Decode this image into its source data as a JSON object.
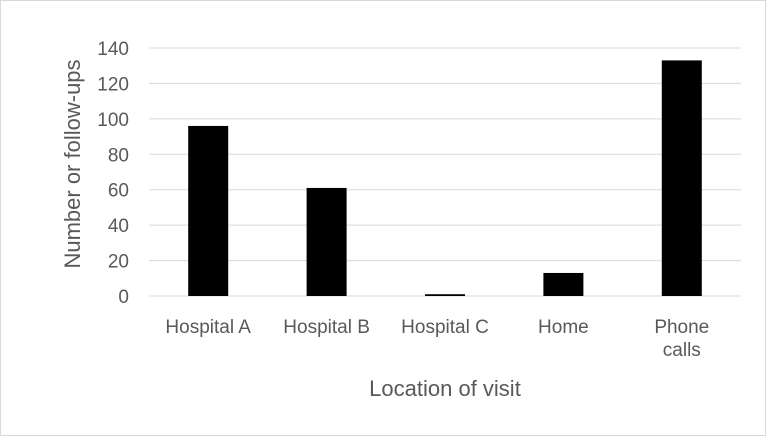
{
  "chart_data": {
    "type": "bar",
    "title": "",
    "xlabel": "Location of visit",
    "ylabel": "Number or follow-ups",
    "categories": [
      {
        "lines": [
          "Hospital A"
        ]
      },
      {
        "lines": [
          "Hospital B"
        ]
      },
      {
        "lines": [
          "Hospital C"
        ]
      },
      {
        "lines": [
          "Home"
        ]
      },
      {
        "lines": [
          "Phone",
          "calls"
        ]
      }
    ],
    "values": [
      96,
      61,
      1,
      13,
      133
    ],
    "ylim": [
      0,
      140
    ],
    "yticks": [
      "0",
      "20",
      "40",
      "60",
      "80",
      "100",
      "120",
      "140"
    ],
    "grid": true,
    "legend": "none",
    "colors": {
      "bar": "#000000",
      "grid": "#d9d9d9",
      "text": "#595959"
    }
  }
}
